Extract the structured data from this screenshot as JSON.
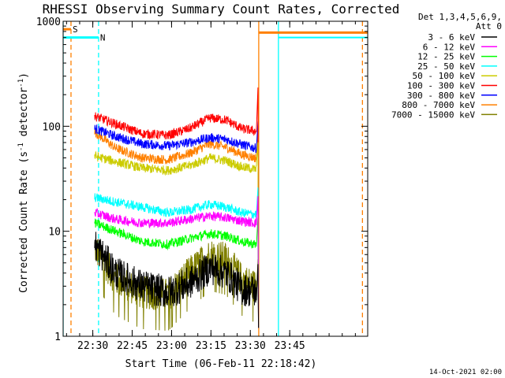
{
  "chart_data": {
    "type": "line",
    "title": "RHESSI Observing Summary Count Rates, Corrected",
    "xlabel": "Start Time (06-Feb-11 22:18:42)",
    "ylabel": "Corrected Count Rate (s",
    "ylabel_sup1": "-1",
    "ylabel_mid": " detector",
    "ylabel_sup2": "-1",
    "ylabel_end": ")",
    "yscale": "log",
    "ylim": [
      1,
      1000
    ],
    "xlim_min": [
      0,
      116
    ],
    "ytick_labels": [
      "1",
      "10",
      "100",
      "1000"
    ],
    "ytick_values": [
      1,
      10,
      100,
      1000
    ],
    "xtick_labels": [
      "22:30",
      "22:45",
      "23:00",
      "23:15",
      "23:30",
      "23:45"
    ],
    "xtick_values_min": [
      11.3,
      26.3,
      41.3,
      56.3,
      71.3,
      86.3
    ],
    "legend_header": [
      "Det 1,3,4,5,6,9,",
      "Att 0"
    ],
    "legend_placement": "outside-right",
    "series": [
      {
        "name": "3 - 6 keV",
        "color": "#000000",
        "kind": "mid",
        "values": [
          [
            12,
            7.5
          ],
          [
            20,
            4.0
          ],
          [
            30,
            3.0
          ],
          [
            40,
            2.6
          ],
          [
            48,
            3.2
          ],
          [
            56,
            4.5
          ],
          [
            62,
            4.0
          ],
          [
            68,
            2.8
          ],
          [
            73,
            2.7
          ]
        ]
      },
      {
        "name": "6 - 12 keV",
        "color": "#ff00ff",
        "kind": "main",
        "values": [
          [
            12,
            15.0
          ],
          [
            20,
            13.0
          ],
          [
            30,
            12.0
          ],
          [
            40,
            12.0
          ],
          [
            48,
            13.0
          ],
          [
            56,
            14.0
          ],
          [
            62,
            13.5
          ],
          [
            68,
            12.5
          ],
          [
            73,
            12.0
          ]
        ]
      },
      {
        "name": "12 - 25 keV",
        "color": "#00ff00",
        "kind": "main",
        "values": [
          [
            12,
            12.0
          ],
          [
            20,
            10.0
          ],
          [
            30,
            8.0
          ],
          [
            40,
            7.5
          ],
          [
            48,
            8.5
          ],
          [
            56,
            9.5
          ],
          [
            62,
            9.0
          ],
          [
            68,
            8.0
          ],
          [
            73,
            7.5
          ]
        ]
      },
      {
        "name": "25 - 50 keV",
        "color": "#00ffff",
        "kind": "main",
        "values": [
          [
            12,
            21.0
          ],
          [
            20,
            19.0
          ],
          [
            30,
            17.0
          ],
          [
            40,
            15.0
          ],
          [
            48,
            16.0
          ],
          [
            56,
            18.0
          ],
          [
            62,
            17.0
          ],
          [
            68,
            15.0
          ],
          [
            73,
            14.5
          ]
        ]
      },
      {
        "name": "50 - 100 keV",
        "color": "#cccc00",
        "kind": "main",
        "values": [
          [
            12,
            52.0
          ],
          [
            20,
            46.0
          ],
          [
            30,
            40.0
          ],
          [
            40,
            38.0
          ],
          [
            48,
            42.0
          ],
          [
            56,
            50.0
          ],
          [
            62,
            47.0
          ],
          [
            68,
            41.0
          ],
          [
            73,
            39.0
          ]
        ]
      },
      {
        "name": "100 - 300 keV",
        "color": "#ff0000",
        "kind": "main",
        "values": [
          [
            12,
            125.0
          ],
          [
            20,
            105.0
          ],
          [
            30,
            85.0
          ],
          [
            40,
            82.0
          ],
          [
            48,
            95.0
          ],
          [
            56,
            120.0
          ],
          [
            62,
            115.0
          ],
          [
            68,
            95.0
          ],
          [
            73,
            90.0
          ]
        ]
      },
      {
        "name": "300 - 800 keV",
        "color": "#0000ff",
        "kind": "main",
        "values": [
          [
            12,
            95.0
          ],
          [
            20,
            80.0
          ],
          [
            30,
            68.0
          ],
          [
            40,
            65.0
          ],
          [
            48,
            70.0
          ],
          [
            56,
            78.0
          ],
          [
            62,
            75.0
          ],
          [
            68,
            67.0
          ],
          [
            73,
            62.0
          ]
        ]
      },
      {
        "name": "800 - 7000 keV",
        "color": "#ff8000",
        "kind": "main",
        "values": [
          [
            12,
            88.0
          ],
          [
            20,
            62.0
          ],
          [
            30,
            50.0
          ],
          [
            40,
            48.0
          ],
          [
            48,
            55.0
          ],
          [
            56,
            68.0
          ],
          [
            62,
            63.0
          ],
          [
            68,
            54.0
          ],
          [
            73,
            50.0
          ]
        ]
      },
      {
        "name": "7000 - 15000 keV",
        "color": "#808000",
        "kind": "low",
        "values": [
          [
            12,
            7.0
          ],
          [
            20,
            3.5
          ],
          [
            30,
            2.6
          ],
          [
            40,
            2.5
          ],
          [
            48,
            4.0
          ],
          [
            56,
            6.0
          ],
          [
            62,
            5.5
          ],
          [
            68,
            3.5
          ],
          [
            73,
            3.0
          ]
        ]
      }
    ],
    "flags": [
      {
        "label": "S",
        "color": "#ff8000",
        "x_start": -3,
        "x_end": 3,
        "level": 840
      },
      {
        "label": "N",
        "color": "#00ffff",
        "x_start": 0,
        "x_end": 13.5,
        "level": 700
      }
    ],
    "vertical_markers": [
      {
        "color": "#00ffff",
        "style": "solid",
        "x": 0
      },
      {
        "color": "#ff8000",
        "style": "dashed",
        "x": 3
      },
      {
        "color": "#00ffff",
        "style": "dashed",
        "x": 13.5
      },
      {
        "color": "#ff8000",
        "style": "solid",
        "x": 74.5
      },
      {
        "color": "#00ffff",
        "style": "solid",
        "x": 82
      },
      {
        "color": "#ff8000",
        "style": "dashed",
        "x": 114
      }
    ],
    "timestamp": "14-Oct-2021 02:00"
  }
}
